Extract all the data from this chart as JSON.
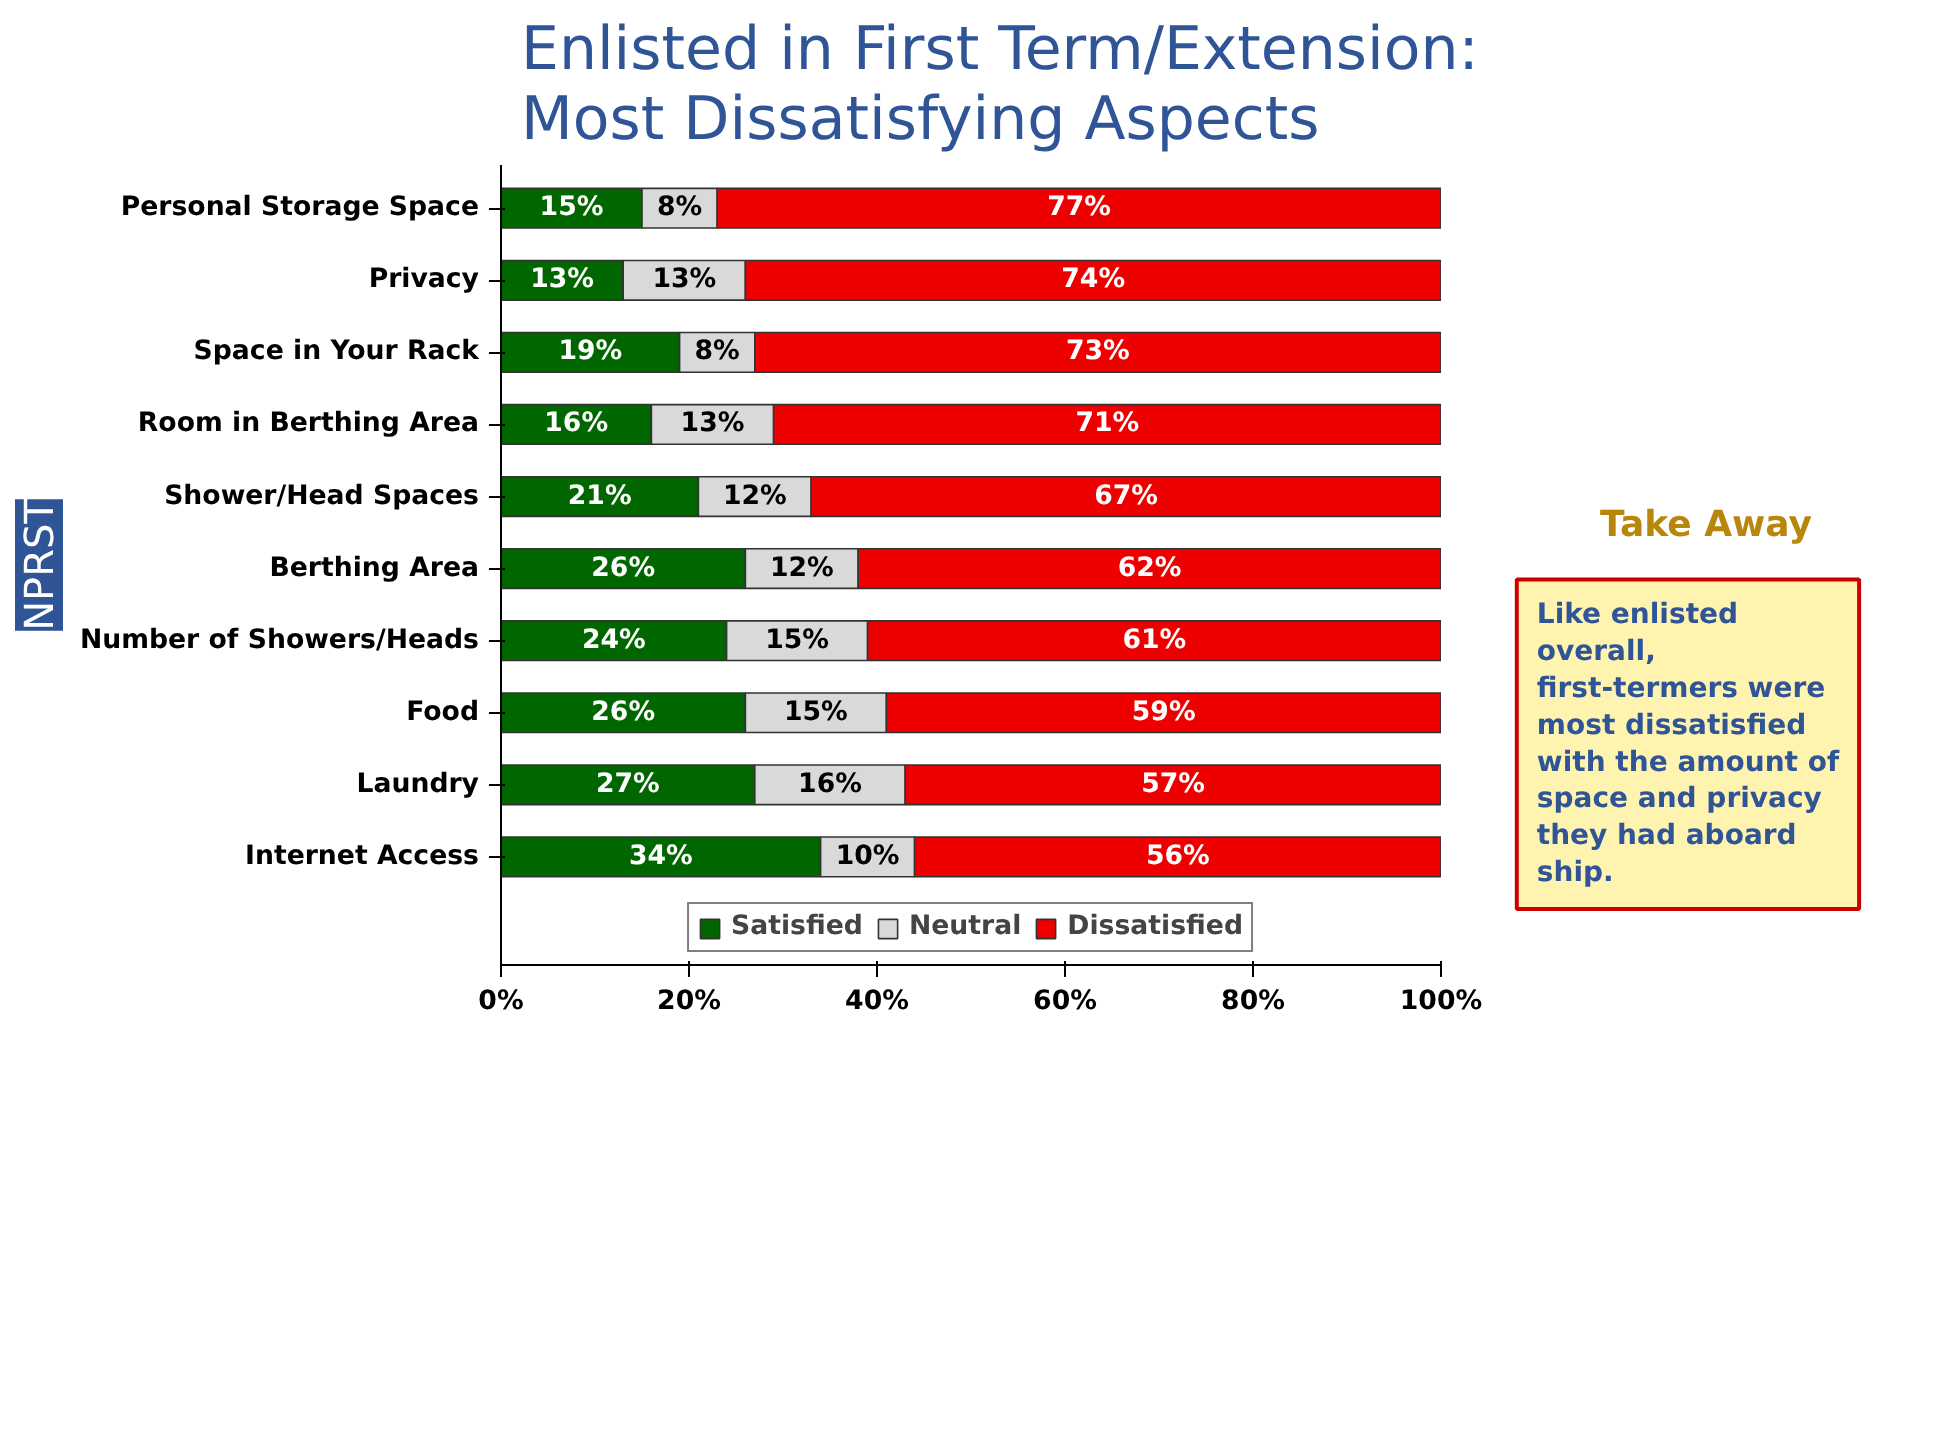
{
  "chart_data": {
    "type": "bar",
    "orientation": "horizontal",
    "stacked": true,
    "title": "Enlisted in First Term/Extension: Most Dissatisfying Aspects",
    "categories": [
      "Personal Storage Space",
      "Privacy",
      "Space in Your Rack",
      "Room in Berthing Area",
      "Shower/Head Spaces",
      "Berthing Area",
      "Number of Showers/Heads",
      "Food",
      "Laundry",
      "Internet Access"
    ],
    "series": [
      {
        "name": "Satisfied",
        "color": "#006600",
        "values": [
          15,
          13,
          19,
          16,
          21,
          26,
          24,
          26,
          27,
          34
        ],
        "value_labels": [
          "15%",
          "13%",
          "19%",
          "16%",
          "21%",
          "26%",
          "24%",
          "26%",
          "27%",
          "34%"
        ]
      },
      {
        "name": "Neutral",
        "color": "#d9d9d9",
        "values": [
          8,
          13,
          8,
          13,
          12,
          12,
          15,
          15,
          16,
          10
        ],
        "value_labels": [
          "8%",
          "13%",
          "8%",
          "13%",
          "12%",
          "12%",
          "15%",
          "15%",
          "16%",
          "10%"
        ]
      },
      {
        "name": "Dissatisfied",
        "color": "#ee0000",
        "values": [
          77,
          74,
          73,
          71,
          67,
          62,
          61,
          59,
          57,
          56
        ],
        "value_labels": [
          "77%",
          "74%",
          "73%",
          "71%",
          "67%",
          "62%",
          "61%",
          "59%",
          "57%",
          "56%"
        ]
      }
    ],
    "xlim": [
      0,
      100
    ],
    "xticks": [
      {
        "value": 0,
        "label": "0%"
      },
      {
        "value": 20,
        "label": "20%"
      },
      {
        "value": 40,
        "label": "40%"
      },
      {
        "value": 60,
        "label": "60%"
      },
      {
        "value": 80,
        "label": "80%"
      },
      {
        "value": 100,
        "label": "100%"
      }
    ],
    "grid": false,
    "legend": "bottom",
    "annotations": [
      "Take Away",
      "Like enlisted overall, first-termers were most dissatisfied with the amount of space and privacy they had aboard ship.",
      "NPRST"
    ]
  }
}
